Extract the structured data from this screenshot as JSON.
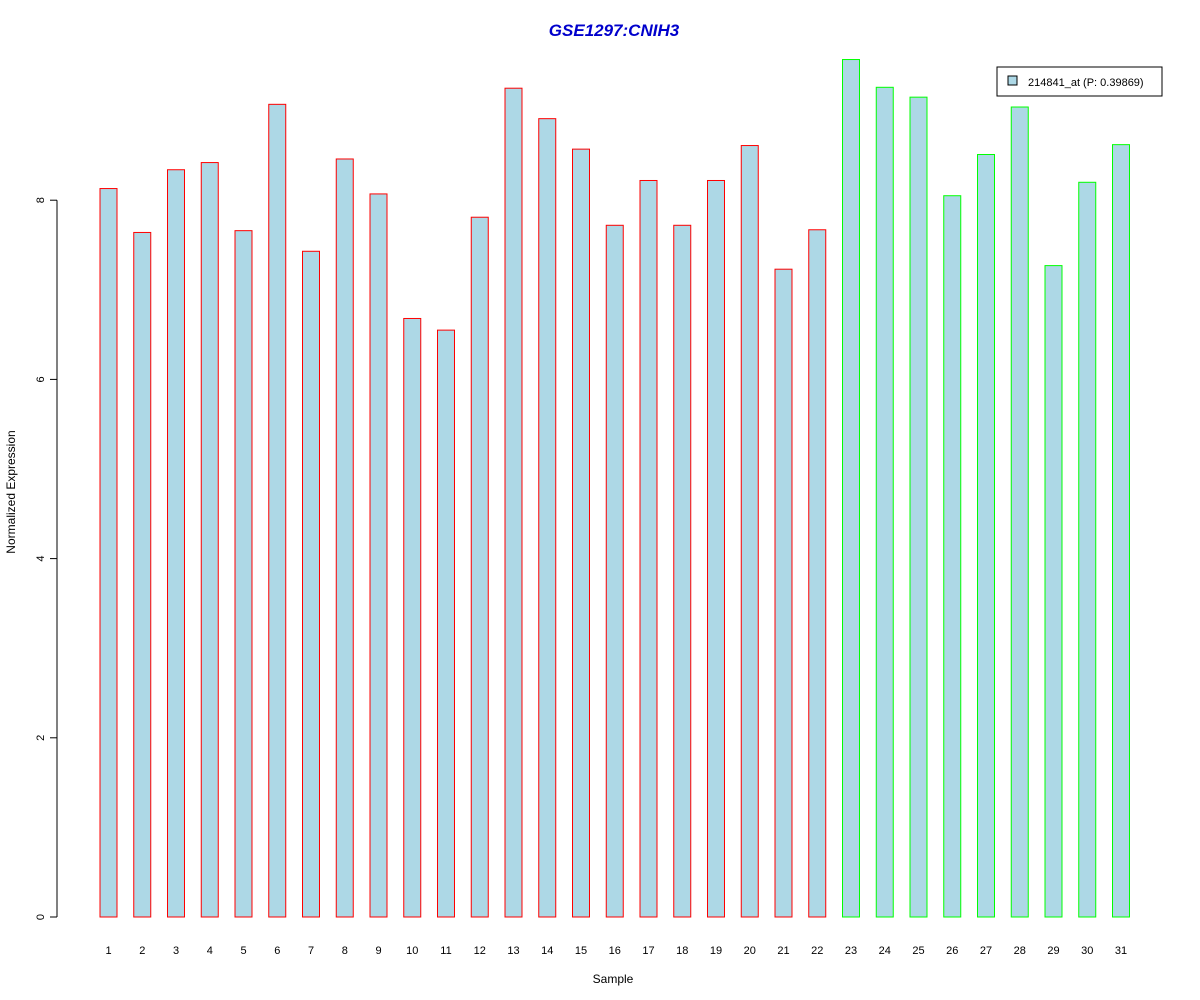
{
  "chart_data": {
    "type": "bar",
    "title": "GSE1297:CNIH3",
    "xlabel": "Sample",
    "ylabel": "Normalized Expression",
    "ylim": [
      0,
      9.6
    ],
    "yticks": [
      0,
      2,
      4,
      6,
      8
    ],
    "categories": [
      "1",
      "2",
      "3",
      "4",
      "5",
      "6",
      "7",
      "8",
      "9",
      "10",
      "11",
      "12",
      "13",
      "14",
      "15",
      "16",
      "17",
      "18",
      "19",
      "20",
      "21",
      "22",
      "23",
      "24",
      "25",
      "26",
      "27",
      "28",
      "29",
      "30",
      "31"
    ],
    "values": [
      8.13,
      7.64,
      8.34,
      8.42,
      7.66,
      9.07,
      7.43,
      8.46,
      8.07,
      6.68,
      6.55,
      7.81,
      9.25,
      8.91,
      8.57,
      7.72,
      8.22,
      7.72,
      8.22,
      8.61,
      7.23,
      7.67,
      9.57,
      9.26,
      9.15,
      8.05,
      8.51,
      9.04,
      7.27,
      8.2,
      8.62
    ],
    "groups": [
      1,
      1,
      1,
      1,
      1,
      1,
      1,
      1,
      1,
      1,
      1,
      1,
      1,
      1,
      1,
      1,
      1,
      1,
      1,
      1,
      1,
      1,
      2,
      2,
      2,
      2,
      2,
      2,
      2,
      2,
      2
    ],
    "legend": {
      "label": "214841_at (P: 0.39869)",
      "position": "top-right"
    },
    "colors": {
      "fill": "#add8e6",
      "group1_border": "#ff0000",
      "group2_border": "#00ff00",
      "title": "#0000cc"
    }
  }
}
